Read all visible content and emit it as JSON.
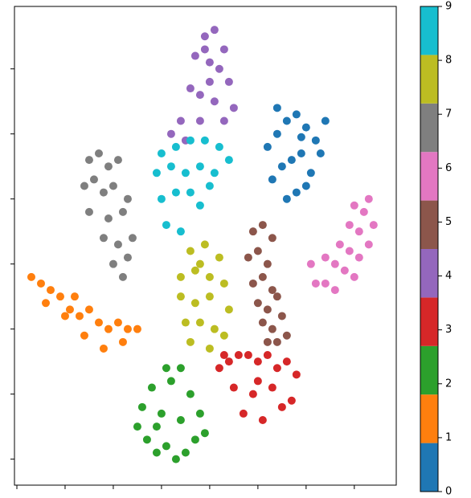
{
  "chart_data": {
    "type": "scatter",
    "xlim": [
      -40.5,
      38.7
    ],
    "ylim": [
      -34,
      39.6
    ],
    "xticks": [
      -40,
      -30,
      -20,
      -10,
      0,
      10,
      20,
      30
    ],
    "yticks": [
      -30,
      -20,
      -10,
      0,
      10,
      20,
      30
    ],
    "colorbar": {
      "lim": [
        0,
        9
      ],
      "ticks": [
        0,
        1,
        2,
        3,
        4,
        5,
        6,
        7,
        8,
        9
      ]
    },
    "series": [
      {
        "color": "#1f77b4",
        "x": [
          12,
          14,
          16,
          18,
          20,
          22,
          24,
          13,
          15,
          17,
          19,
          21,
          23,
          16,
          18,
          20,
          14,
          19
        ],
        "y": [
          18,
          20,
          22,
          23,
          21,
          19,
          22,
          13,
          15,
          16,
          17,
          14,
          17,
          10,
          11,
          12,
          24,
          19.5
        ]
      },
      {
        "color": "#ff7f0e",
        "x": [
          -37,
          -35,
          -33,
          -31,
          -29,
          -27,
          -25,
          -23,
          -21,
          -19,
          -17,
          -15,
          -34,
          -30,
          -26,
          -22,
          -18,
          -28
        ],
        "y": [
          -2,
          -3,
          -4,
          -5,
          -7,
          -8,
          -7,
          -9,
          -10,
          -9,
          -10,
          -10,
          -6,
          -8,
          -11,
          -13,
          -12,
          -5
        ]
      },
      {
        "color": "#2ca02c",
        "x": [
          -15,
          -13,
          -11,
          -9,
          -7,
          -5,
          -3,
          -1,
          -14,
          -10,
          -6,
          -2,
          -12,
          -8,
          -4,
          -9,
          -6,
          -11
        ],
        "y": [
          -25,
          -27,
          -29,
          -28,
          -30,
          -29,
          -27,
          -26,
          -22,
          -23,
          -24,
          -23,
          -19,
          -18,
          -20,
          -16,
          -16,
          -25
        ]
      },
      {
        "color": "#d62728",
        "x": [
          2,
          4,
          6,
          8,
          10,
          12,
          14,
          16,
          18,
          5,
          9,
          13,
          17,
          7,
          11,
          15,
          10,
          3
        ],
        "y": [
          -16,
          -15,
          -14,
          -14,
          -15,
          -14,
          -16,
          -15,
          -17,
          -19,
          -20,
          -19,
          -21,
          -23,
          -24,
          -22,
          -18,
          -14
        ]
      },
      {
        "color": "#9467bd",
        "x": [
          -1,
          1,
          3,
          -3,
          0,
          2,
          4,
          -4,
          -2,
          1,
          5,
          -2,
          0,
          3,
          -6,
          -8,
          -5,
          -1
        ],
        "y": [
          35,
          36,
          33,
          32,
          31,
          30,
          28,
          27,
          26,
          25,
          24,
          22,
          28,
          22,
          22,
          20,
          19,
          33
        ]
      },
      {
        "color": "#8c564b",
        "x": [
          9,
          11,
          13,
          8,
          10,
          12,
          9,
          11,
          13,
          10,
          12,
          14,
          11,
          13,
          15,
          12,
          14,
          16
        ],
        "y": [
          5,
          6,
          4,
          1,
          2,
          0,
          -3,
          -2,
          -4,
          -6,
          -7,
          -5,
          -9,
          -10,
          -8,
          -12,
          -12,
          -11
        ]
      },
      {
        "color": "#e377c2",
        "x": [
          33,
          32,
          30,
          34,
          29,
          31,
          33,
          27,
          29,
          31,
          24,
          26,
          28,
          22,
          24,
          26,
          30,
          21
        ],
        "y": [
          10,
          8,
          9,
          6,
          6,
          5,
          3,
          3,
          2,
          1,
          1,
          0,
          -1,
          -3,
          -3,
          -4,
          -2,
          0
        ]
      },
      {
        "color": "#7f7f7f",
        "x": [
          -25,
          -23,
          -21,
          -19,
          -26,
          -24,
          -22,
          -20,
          -17,
          -25,
          -21,
          -18,
          -22,
          -19,
          -16,
          -20,
          -17,
          -18
        ],
        "y": [
          16,
          17,
          15,
          16,
          12,
          13,
          11,
          12,
          10,
          8,
          7,
          8,
          4,
          3,
          4,
          0,
          1,
          -2
        ]
      },
      {
        "color": "#bcbd22",
        "x": [
          -4,
          -1,
          2,
          -6,
          -3,
          0,
          3,
          -6,
          -3,
          0,
          4,
          -5,
          -2,
          1,
          -4,
          0,
          3,
          -2
        ],
        "y": [
          2,
          3,
          1,
          -2,
          -1,
          -2,
          -3,
          -5,
          -6,
          -5,
          -7,
          -9,
          -9,
          -10,
          -12,
          -13,
          -11,
          0
        ]
      },
      {
        "color": "#17becf",
        "x": [
          -10,
          -7,
          -4,
          -1,
          2,
          4,
          -11,
          -8,
          -5,
          -2,
          1,
          -10,
          -7,
          -4,
          -9,
          -6,
          -2,
          0
        ],
        "y": [
          17,
          18,
          19,
          19,
          18,
          16,
          14,
          15,
          14,
          15,
          14,
          10,
          11,
          11,
          6,
          5,
          9,
          12
        ]
      }
    ]
  }
}
